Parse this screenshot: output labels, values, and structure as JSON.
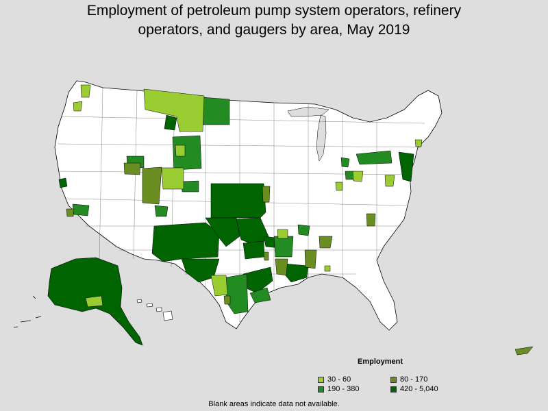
{
  "title_line1": "Employment of petroleum pump system operators, refinery",
  "title_line2": "operators, and gaugers by area, May 2019",
  "legend": {
    "title": "Employment",
    "items": [
      {
        "label": "30 - 60",
        "color": "#9acd32"
      },
      {
        "label": "80 - 170",
        "color": "#6b8e23"
      },
      {
        "label": "190 - 380",
        "color": "#228b22"
      },
      {
        "label": "420 - 5,040",
        "color": "#006400"
      }
    ]
  },
  "footnote": "Blank areas indicate data not available.",
  "colors": {
    "background": "#dedede",
    "no_data": "#ffffff",
    "border": "#000000"
  }
}
